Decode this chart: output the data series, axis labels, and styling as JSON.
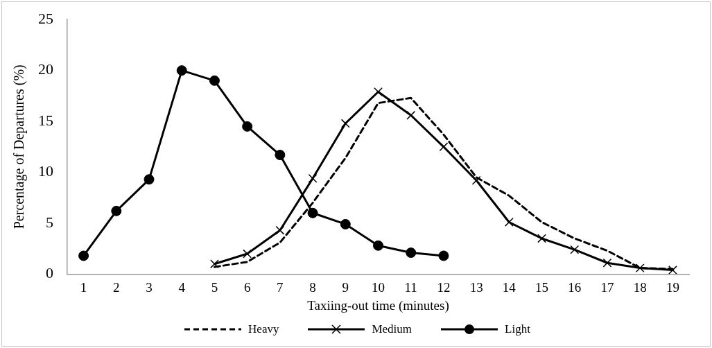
{
  "chart_data": {
    "type": "line",
    "xlabel": "Taxiing-out time (minutes)",
    "ylabel": "Percentage of Departures (%)",
    "series": [
      {
        "name": "Heavy",
        "color": "#000000",
        "line_style": "dashed",
        "marker": "none",
        "x": [
          5,
          6,
          7,
          8,
          9,
          10,
          11,
          12,
          13,
          14,
          15,
          16,
          17,
          18,
          19
        ],
        "values": [
          0.7,
          1.2,
          3.1,
          7.0,
          11.4,
          16.8,
          17.3,
          13.7,
          9.5,
          7.7,
          5.1,
          3.5,
          2.3,
          0.6,
          0.5
        ]
      },
      {
        "name": "Medium",
        "color": "#000000",
        "line_style": "solid",
        "marker": "cross",
        "x": [
          5,
          6,
          7,
          8,
          9,
          10,
          11,
          12,
          13,
          14,
          15,
          16,
          17,
          18,
          19
        ],
        "values": [
          1.0,
          2.0,
          4.3,
          9.4,
          14.8,
          17.9,
          15.6,
          12.5,
          9.2,
          5.1,
          3.5,
          2.4,
          1.1,
          0.6,
          0.4
        ]
      },
      {
        "name": "Light",
        "color": "#000000",
        "line_style": "solid",
        "marker": "circle",
        "x": [
          1,
          2,
          3,
          4,
          5,
          6,
          7,
          8,
          9,
          10,
          11,
          12
        ],
        "values": [
          1.8,
          6.2,
          9.3,
          20.0,
          19.0,
          14.5,
          11.7,
          6.0,
          4.9,
          2.8,
          2.1,
          1.8
        ]
      }
    ],
    "xlim": [
      0.5,
      19.5
    ],
    "xticks": [
      1,
      2,
      3,
      4,
      5,
      6,
      7,
      8,
      9,
      10,
      11,
      12,
      13,
      14,
      15,
      16,
      17,
      18,
      19
    ],
    "ylim": [
      0,
      25
    ],
    "yticks": [
      0,
      5,
      10,
      15,
      20,
      25
    ],
    "grid": false,
    "legend": "bottom"
  }
}
